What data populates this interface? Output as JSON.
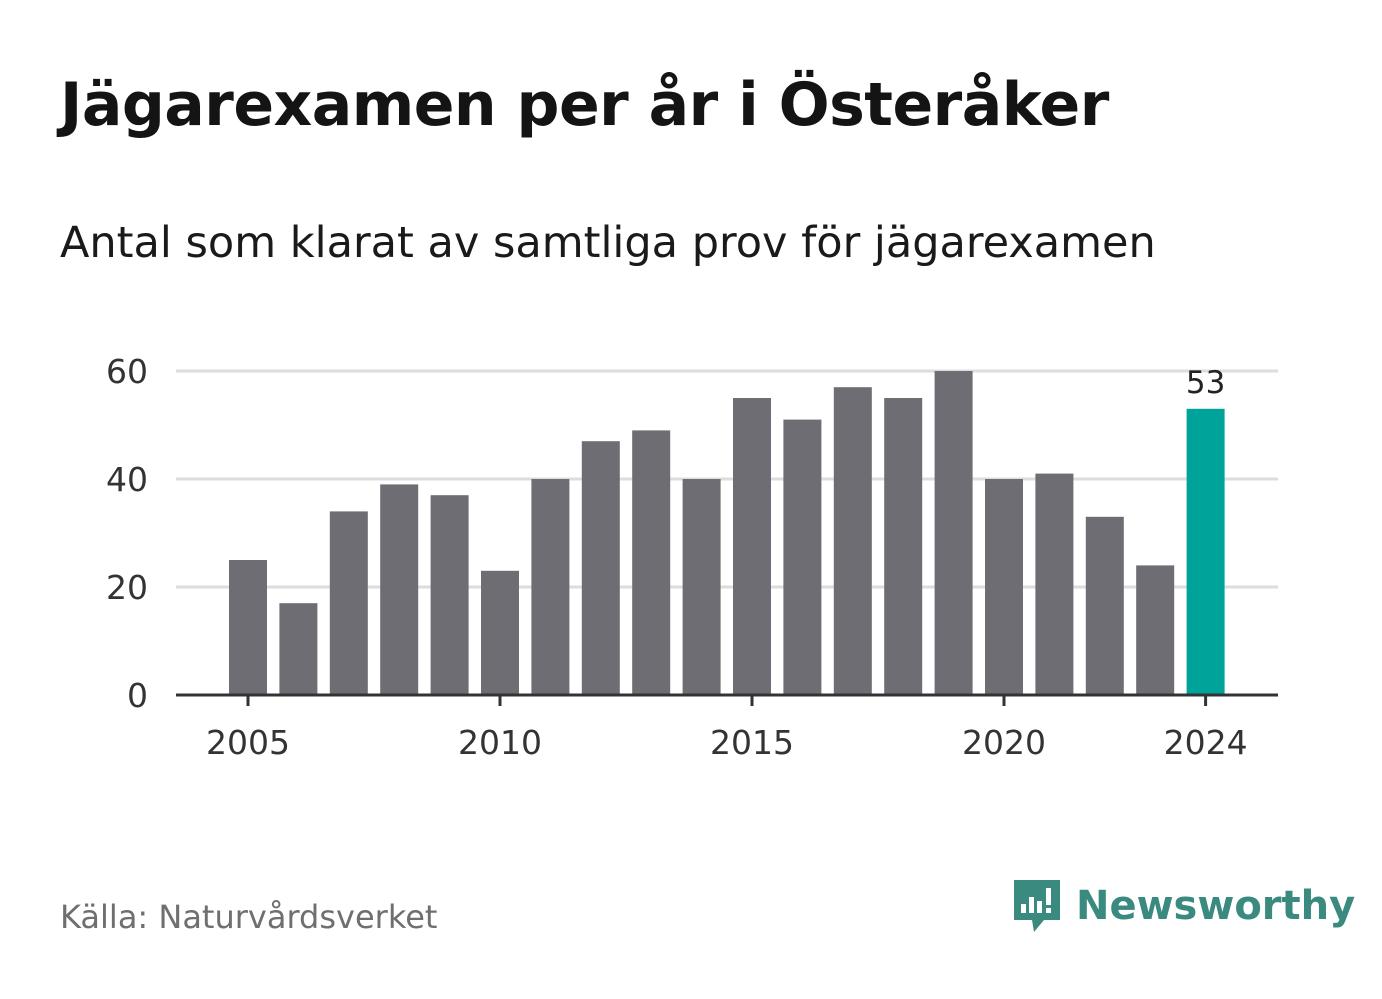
{
  "title": "Jägarexamen per år i Österåker",
  "subtitle": "Antal som klarat av samtliga prov för jägarexamen",
  "source": "Källa: Naturvårdsverket",
  "brand": {
    "name": "Newsworthy",
    "icon": "newsworthy-logo-icon",
    "color": "#3a8a80"
  },
  "colors": {
    "bar": "#6e6d73",
    "highlight": "#00a39a",
    "grid": "#dddddd",
    "axis": "#333333"
  },
  "chart_data": {
    "type": "bar",
    "categories": [
      "2005",
      "2006",
      "2007",
      "2008",
      "2009",
      "2010",
      "2011",
      "2012",
      "2013",
      "2014",
      "2015",
      "2016",
      "2017",
      "2018",
      "2019",
      "2020",
      "2021",
      "2022",
      "2023",
      "2024"
    ],
    "values": [
      25,
      17,
      34,
      39,
      37,
      23,
      40,
      47,
      49,
      40,
      55,
      51,
      57,
      55,
      60,
      40,
      41,
      33,
      24,
      53
    ],
    "highlight_index": 19,
    "highlight_label": "53",
    "xticks": [
      "2005",
      "2010",
      "2015",
      "2020",
      "2024"
    ],
    "yticks": [
      "0",
      "20",
      "40",
      "60"
    ],
    "ylim": [
      0,
      60
    ],
    "grid": true,
    "title": "Jägarexamen per år i Österåker",
    "subtitle": "Antal som klarat av samtliga prov för jägarexamen"
  }
}
